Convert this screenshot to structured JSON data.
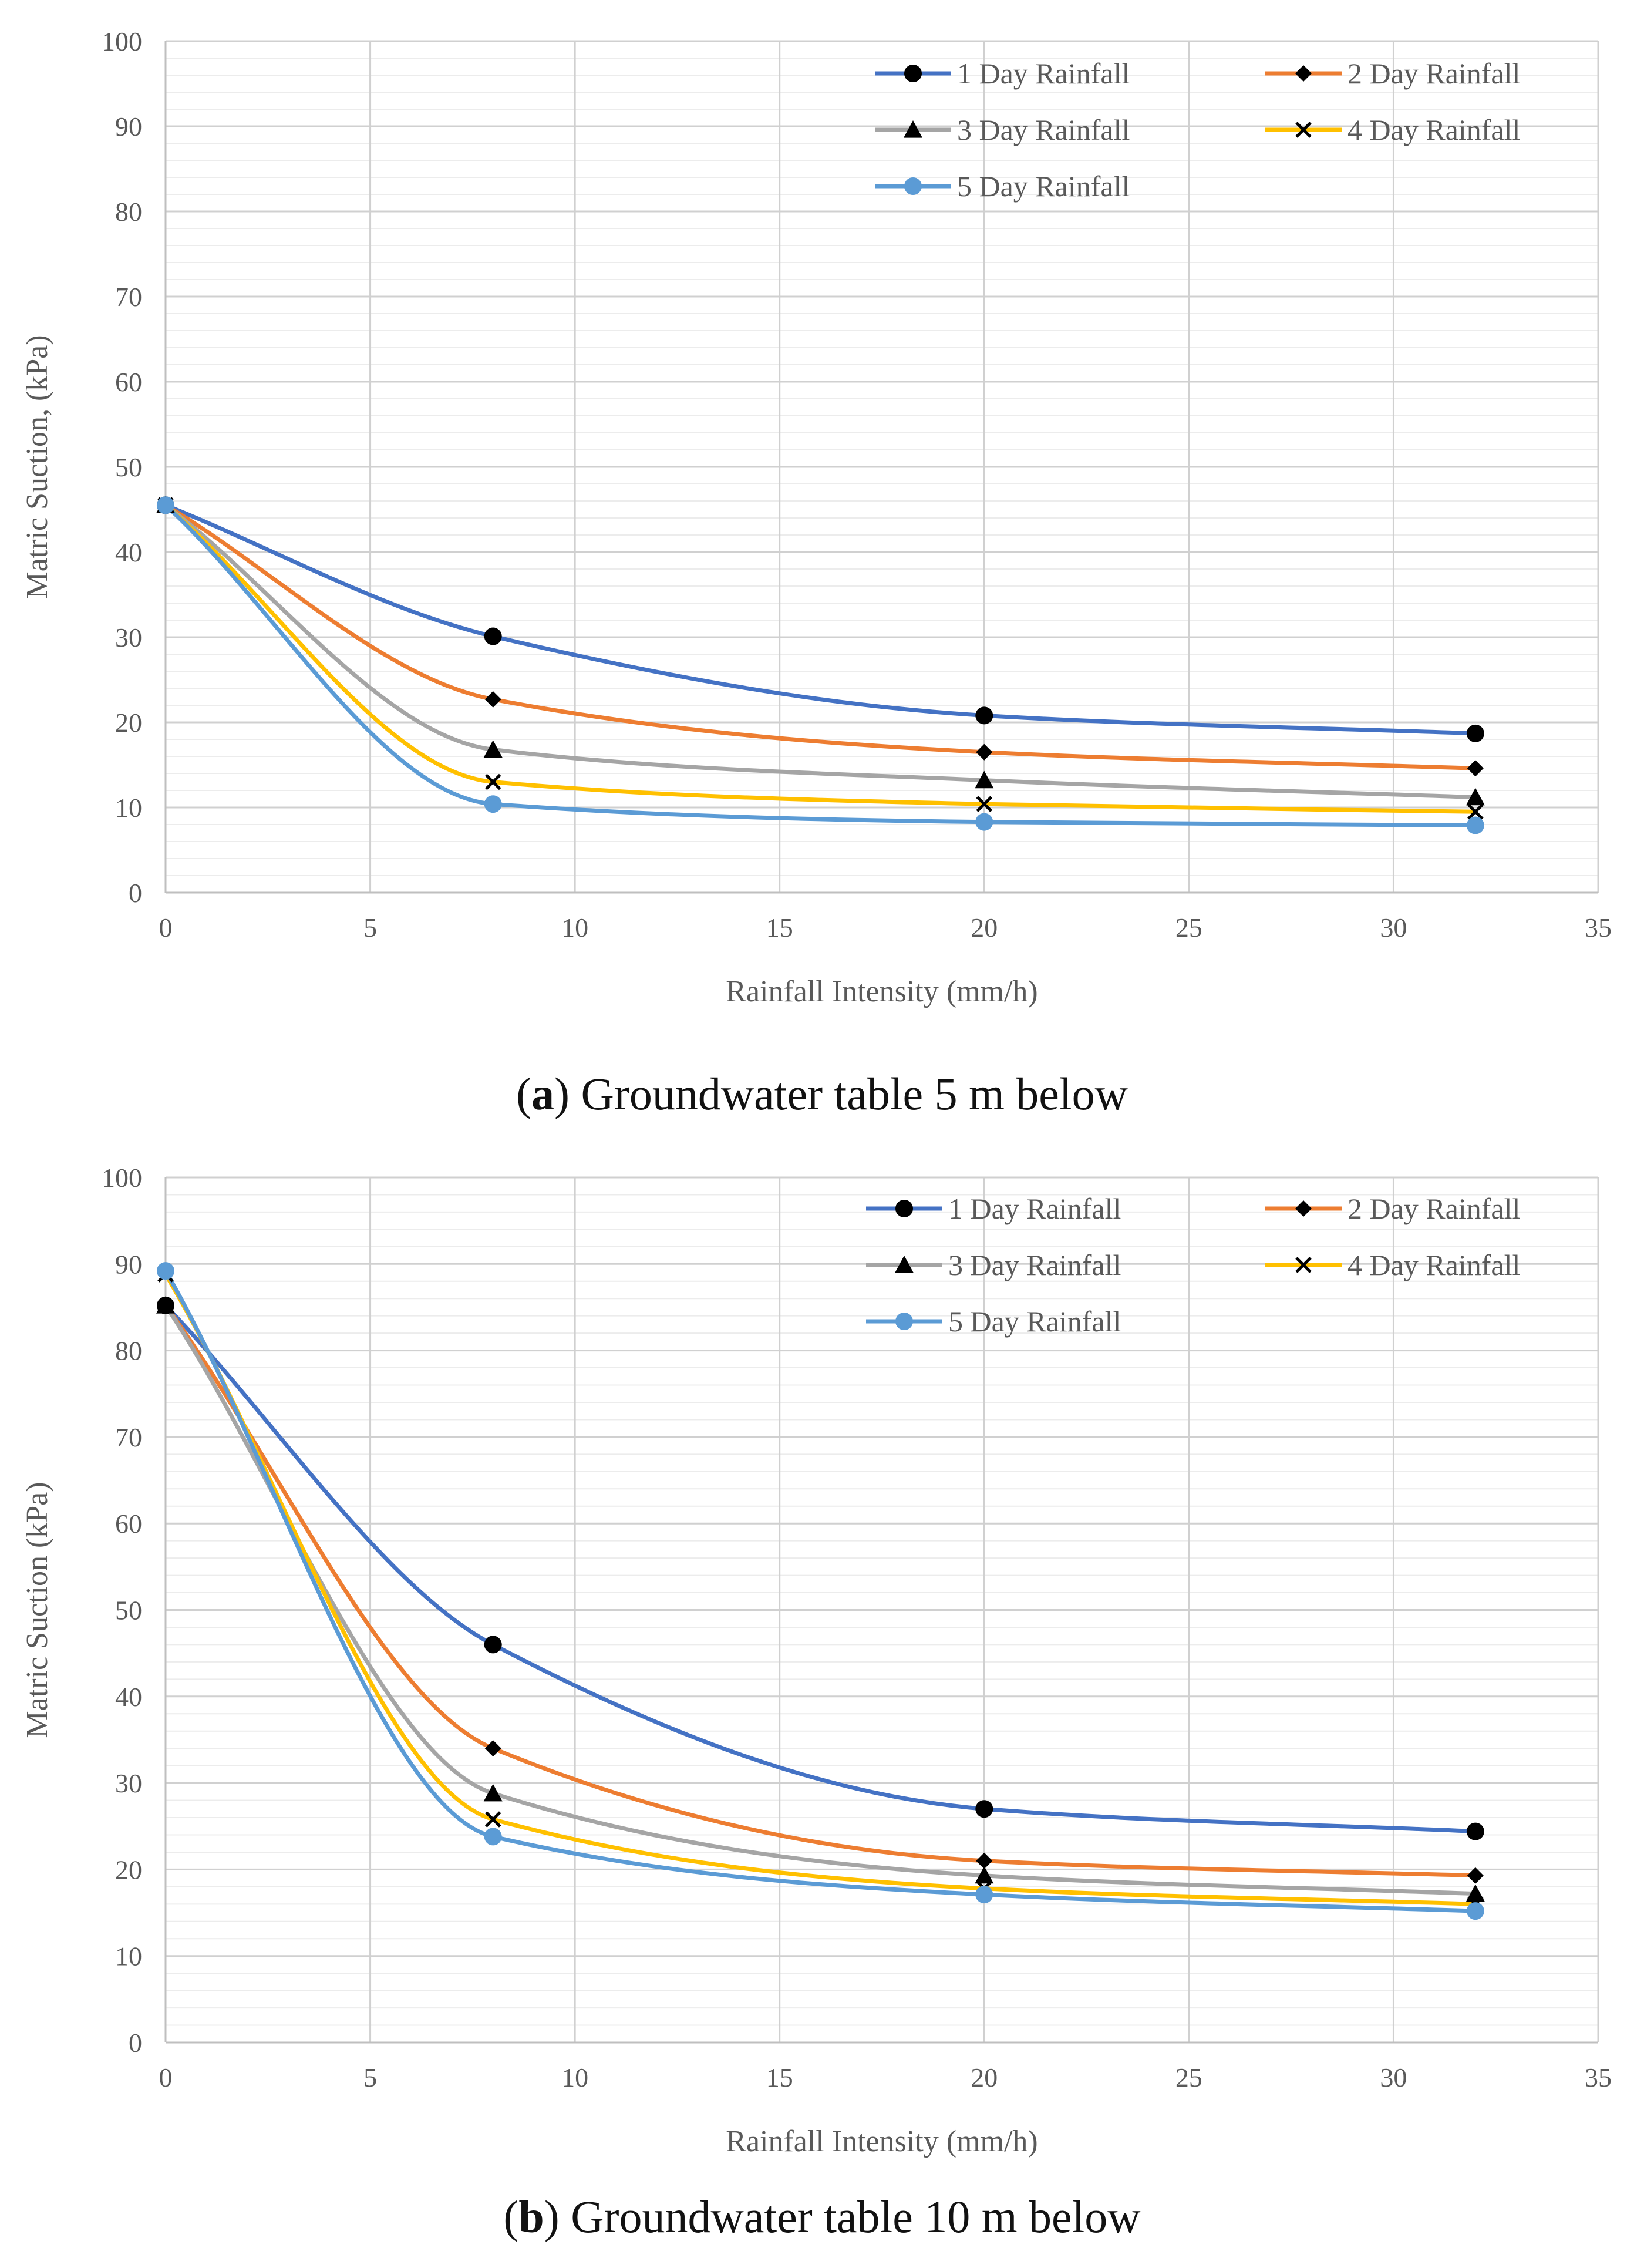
{
  "colors": {
    "series": [
      "#4472C4",
      "#ED7D31",
      "#A5A5A5",
      "#FFC000",
      "#5B9BD5"
    ],
    "marker": "#000000",
    "grid_major": "#d0d0d0",
    "grid_minor": "#ececec"
  },
  "chart_data": [
    {
      "type": "line",
      "caption_letter": "a",
      "caption_text": " Groundwater table 5 m below",
      "xlabel": "Rainfall Intensity (mm/h)",
      "ylabel": "Matric Suction, (kPa)",
      "xlim": [
        0,
        35
      ],
      "ylim": [
        0,
        100
      ],
      "xticks": [
        0,
        5,
        10,
        15,
        20,
        25,
        30,
        35
      ],
      "yticks": [
        0,
        10,
        20,
        30,
        40,
        50,
        60,
        70,
        80,
        90,
        100
      ],
      "grid": true,
      "legend_position": "top-right",
      "x": [
        0,
        8,
        20,
        32
      ],
      "series": [
        {
          "name": "1 Day Rainfall",
          "marker": "circle-black",
          "values": [
            45.5,
            30.1,
            20.8,
            18.7
          ]
        },
        {
          "name": "2 Day Rainfall",
          "marker": "diamond",
          "values": [
            45.5,
            22.7,
            16.5,
            14.6
          ]
        },
        {
          "name": "3 Day Rainfall",
          "marker": "triangle",
          "values": [
            45.5,
            16.8,
            13.2,
            11.2
          ]
        },
        {
          "name": "4 Day Rainfall",
          "marker": "x",
          "values": [
            45.5,
            13.0,
            10.4,
            9.5
          ]
        },
        {
          "name": "5 Day Rainfall",
          "marker": "circle-blue",
          "values": [
            45.5,
            10.4,
            8.3,
            7.9
          ]
        }
      ]
    },
    {
      "type": "line",
      "caption_letter": "b",
      "caption_text": " Groundwater table 10 m below",
      "xlabel": "Rainfall Intensity (mm/h)",
      "ylabel": "Matric Suction (kPa)",
      "xlim": [
        0,
        35
      ],
      "ylim": [
        0,
        100
      ],
      "xticks": [
        0,
        5,
        10,
        15,
        20,
        25,
        30,
        35
      ],
      "yticks": [
        0,
        10,
        20,
        30,
        40,
        50,
        60,
        70,
        80,
        90,
        100
      ],
      "grid": true,
      "legend_position": "top-right",
      "x": [
        0,
        8,
        20,
        32
      ],
      "series": [
        {
          "name": "1 Day Rainfall",
          "marker": "circle-black",
          "values": [
            85.2,
            46.0,
            27.0,
            24.4
          ]
        },
        {
          "name": "2 Day Rainfall",
          "marker": "diamond",
          "values": [
            85.2,
            34.0,
            21.0,
            19.3
          ]
        },
        {
          "name": "3 Day Rainfall",
          "marker": "triangle",
          "values": [
            85.2,
            28.8,
            19.3,
            17.2
          ]
        },
        {
          "name": "4 Day Rainfall",
          "marker": "x",
          "values": [
            88.8,
            25.8,
            17.8,
            16.0
          ]
        },
        {
          "name": "5 Day Rainfall",
          "marker": "circle-blue",
          "values": [
            89.2,
            23.8,
            17.1,
            15.2
          ]
        }
      ]
    }
  ]
}
